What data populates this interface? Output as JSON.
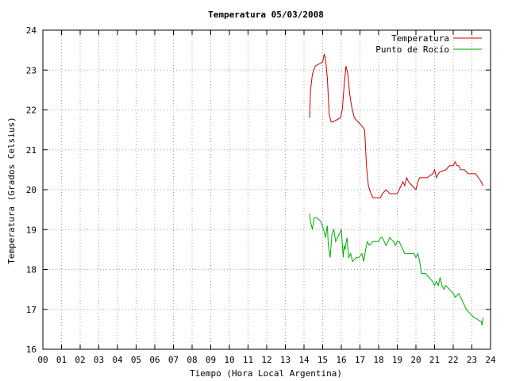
{
  "chart_data": {
    "type": "line",
    "title": "Temperatura 05/03/2008",
    "xlabel": "Tiempo (Hora Local Argentina)",
    "ylabel": "Temperatura (Grados Celsius)",
    "xlim": [
      0,
      24
    ],
    "ylim": [
      16,
      24
    ],
    "grid": true,
    "legend_position": "top-right",
    "x_ticks": [
      0,
      1,
      2,
      3,
      4,
      5,
      6,
      7,
      8,
      9,
      10,
      11,
      12,
      13,
      14,
      15,
      16,
      17,
      18,
      19,
      20,
      21,
      22,
      23,
      24
    ],
    "x_tick_labels": [
      "00",
      "01",
      "02",
      "03",
      "04",
      "05",
      "06",
      "07",
      "08",
      "09",
      "10",
      "11",
      "12",
      "13",
      "14",
      "15",
      "16",
      "17",
      "18",
      "19",
      "20",
      "21",
      "22",
      "23",
      "24"
    ],
    "y_ticks": [
      16,
      17,
      18,
      19,
      20,
      21,
      22,
      23,
      24
    ],
    "y_tick_labels": [
      "16",
      "17",
      "18",
      "19",
      "20",
      "21",
      "22",
      "23",
      "24"
    ],
    "series": [
      {
        "name": "Temperatura",
        "color": "#cc0000",
        "x": [
          14.3,
          14.35,
          14.45,
          14.6,
          14.8,
          15.0,
          15.08,
          15.15,
          15.25,
          15.35,
          15.45,
          15.55,
          15.75,
          15.95,
          16.05,
          16.15,
          16.25,
          16.35,
          16.45,
          16.55,
          16.7,
          16.9,
          17.1,
          17.25,
          17.35,
          17.45,
          17.55,
          17.7,
          17.85,
          18.0,
          18.1,
          18.2,
          18.4,
          18.6,
          18.8,
          19.0,
          19.1,
          19.2,
          19.3,
          19.4,
          19.5,
          19.6,
          19.7,
          19.8,
          20.0,
          20.1,
          20.2,
          20.3,
          20.6,
          20.9,
          21.0,
          21.1,
          21.2,
          21.3,
          21.6,
          21.8,
          22.0,
          22.1,
          22.2,
          22.3,
          22.4,
          22.6,
          22.8,
          23.0,
          23.2,
          23.35,
          23.5,
          23.6
        ],
        "y": [
          21.8,
          22.5,
          22.9,
          23.1,
          23.15,
          23.2,
          23.4,
          23.3,
          22.8,
          21.9,
          21.7,
          21.7,
          21.75,
          21.8,
          22.0,
          22.6,
          23.1,
          22.9,
          22.4,
          22.1,
          21.8,
          21.7,
          21.6,
          21.5,
          20.6,
          20.1,
          19.95,
          19.8,
          19.8,
          19.8,
          19.8,
          19.9,
          20.0,
          19.9,
          19.9,
          19.9,
          20.0,
          20.1,
          20.2,
          20.1,
          20.3,
          20.2,
          20.15,
          20.1,
          20.0,
          20.2,
          20.3,
          20.3,
          20.3,
          20.4,
          20.5,
          20.3,
          20.4,
          20.45,
          20.5,
          20.6,
          20.6,
          20.7,
          20.6,
          20.6,
          20.5,
          20.5,
          20.4,
          20.4,
          20.4,
          20.3,
          20.2,
          20.1
        ]
      },
      {
        "name": "Punto de Rocío",
        "color": "#00aa00",
        "x": [
          14.3,
          14.35,
          14.45,
          14.55,
          14.7,
          14.9,
          15.05,
          15.15,
          15.25,
          15.3,
          15.4,
          15.5,
          15.6,
          15.7,
          15.8,
          15.9,
          16.0,
          16.1,
          16.15,
          16.2,
          16.3,
          16.4,
          16.5,
          16.6,
          16.8,
          16.95,
          17.1,
          17.2,
          17.3,
          17.4,
          17.5,
          17.7,
          17.9,
          18.0,
          18.1,
          18.2,
          18.3,
          18.4,
          18.5,
          18.6,
          18.8,
          18.9,
          19.0,
          19.1,
          19.2,
          19.3,
          19.4,
          19.5,
          19.7,
          19.9,
          20.0,
          20.1,
          20.2,
          20.3,
          20.35,
          20.5,
          20.7,
          20.9,
          21.0,
          21.1,
          21.2,
          21.3,
          21.4,
          21.5,
          21.6,
          21.8,
          22.0,
          22.1,
          22.3,
          22.4,
          22.5,
          22.7,
          22.9,
          23.1,
          23.3,
          23.45,
          23.5,
          23.55,
          23.6
        ],
        "y": [
          19.4,
          19.2,
          19.0,
          19.3,
          19.3,
          19.2,
          19.0,
          18.8,
          19.1,
          18.6,
          18.3,
          18.9,
          19.0,
          18.7,
          18.8,
          18.9,
          19.0,
          18.3,
          18.6,
          18.5,
          18.8,
          18.3,
          18.4,
          18.2,
          18.3,
          18.3,
          18.4,
          18.2,
          18.5,
          18.7,
          18.6,
          18.7,
          18.7,
          18.7,
          18.8,
          18.8,
          18.7,
          18.6,
          18.7,
          18.8,
          18.7,
          18.6,
          18.7,
          18.7,
          18.6,
          18.5,
          18.4,
          18.4,
          18.4,
          18.4,
          18.3,
          18.4,
          18.2,
          17.9,
          17.9,
          17.9,
          17.8,
          17.7,
          17.6,
          17.7,
          17.6,
          17.8,
          17.6,
          17.5,
          17.6,
          17.5,
          17.4,
          17.3,
          17.4,
          17.3,
          17.2,
          17.0,
          16.9,
          16.8,
          16.75,
          16.7,
          16.7,
          16.6,
          16.8
        ]
      }
    ]
  }
}
